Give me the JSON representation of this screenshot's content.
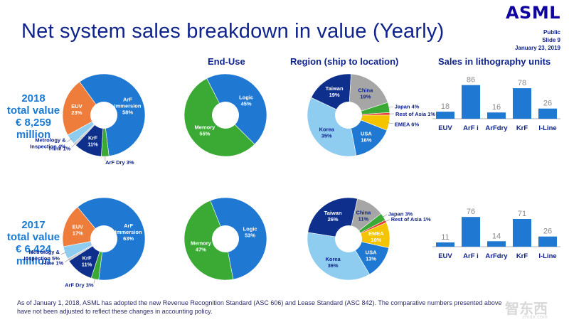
{
  "header": {
    "title": "Net system sales breakdown in value (Yearly)",
    "logo": "ASML",
    "classification": "Public",
    "slide": "Slide 9",
    "date": "January 23, 2019"
  },
  "section_headers": {
    "end_use": "End-Use",
    "region": "Region (ship to location)",
    "units": "Sales in lithography units"
  },
  "years": [
    {
      "line1": "2018",
      "line2": "total value",
      "line3": "€ 8,259",
      "line4": "million"
    },
    {
      "line1": "2017",
      "line2": "total value",
      "line3": "€ 6,424",
      "line4": "million"
    }
  ],
  "footnote": "As of January 1, 2018, ASML has adopted the new Revenue Recognition Standard (ASC 606) and Lease Standard (ASC 842). The comparative numbers presented above have not been adjusted to reflect these changes in accounting policy.",
  "watermark": {
    "text": "智东西",
    "sub": "zhidx.com"
  },
  "chart_data": [
    {
      "type": "pie",
      "id": "tech-2018",
      "title": "Technology 2018",
      "slices": [
        {
          "name": "ArF Immersion",
          "label": "ArF\nImmersion\n58%",
          "value": 58,
          "color": "#1f78d1"
        },
        {
          "name": "ArF Dry",
          "label": "ArF Dry 3%",
          "value": 3,
          "color": "#3aaa35"
        },
        {
          "name": "KrF",
          "label": "KrF\n11%",
          "value": 11,
          "color": "#0f2f8c"
        },
        {
          "name": "I-line",
          "label": "I-line 1%",
          "value": 1,
          "color": "#c9c9c9"
        },
        {
          "name": "Metrology & Inspection",
          "label": "Metrology &\nInspection 4%",
          "value": 4,
          "color": "#8fcdf0"
        },
        {
          "name": "EUV",
          "label": "EUV\n23%",
          "value": 23,
          "color": "#ee7d3b"
        }
      ]
    },
    {
      "type": "pie",
      "id": "enduse-2018",
      "title": "End-Use 2018",
      "slices": [
        {
          "name": "Logic",
          "label": "Logic\n45%",
          "value": 45,
          "color": "#1f78d1"
        },
        {
          "name": "Memory",
          "label": "Memory\n55%",
          "value": 55,
          "color": "#3aaa35"
        }
      ]
    },
    {
      "type": "pie",
      "id": "region-2018",
      "title": "Region 2018",
      "slices": [
        {
          "name": "Taiwan",
          "label": "Taiwan\n19%",
          "value": 19,
          "color": "#0f2f8c"
        },
        {
          "name": "China",
          "label": "China\n19%",
          "value": 19,
          "color": "#a6a6a6"
        },
        {
          "name": "Japan",
          "label": "Japan 4%",
          "value": 4,
          "color": "#3aaa35"
        },
        {
          "name": "Rest of Asia",
          "label": "Rest of Asia 1%",
          "value": 1,
          "color": "#e8392d"
        },
        {
          "name": "EMEA",
          "label": "EMEA 6%",
          "value": 6,
          "color": "#f5c400"
        },
        {
          "name": "USA",
          "label": "USA\n16%",
          "value": 16,
          "color": "#1f78d1"
        },
        {
          "name": "Korea",
          "label": "Korea\n35%",
          "value": 35,
          "color": "#8fcdf0"
        }
      ]
    },
    {
      "type": "bar",
      "id": "units-2018",
      "title": "Sales in lithography units 2018",
      "categories": [
        "EUV",
        "ArF i",
        "ArFdry",
        "KrF",
        "I-Line"
      ],
      "values": [
        18,
        86,
        16,
        78,
        26
      ],
      "ylim": [
        0,
        100
      ],
      "color": "#1f78d1"
    },
    {
      "type": "pie",
      "id": "tech-2017",
      "title": "Technology 2017",
      "slices": [
        {
          "name": "ArF Immersion",
          "label": "ArF\nImmersion\n63%",
          "value": 63,
          "color": "#1f78d1"
        },
        {
          "name": "ArF Dry",
          "label": "ArF Dry 3%",
          "value": 3,
          "color": "#3aaa35"
        },
        {
          "name": "KrF",
          "label": "KrF\n11%",
          "value": 11,
          "color": "#0f2f8c"
        },
        {
          "name": "I-line",
          "label": "I-line 1%",
          "value": 1,
          "color": "#c9c9c9"
        },
        {
          "name": "Metrology & Inspection",
          "label": "Metrology &\nInspection 5%",
          "value": 5,
          "color": "#8fcdf0"
        },
        {
          "name": "EUV",
          "label": "EUV\n17%",
          "value": 17,
          "color": "#ee7d3b"
        }
      ]
    },
    {
      "type": "pie",
      "id": "enduse-2017",
      "title": "End-Use 2017",
      "slices": [
        {
          "name": "Logic",
          "label": "Logic\n53%",
          "value": 53,
          "color": "#1f78d1"
        },
        {
          "name": "Memory",
          "label": "Memory\n47%",
          "value": 47,
          "color": "#3aaa35"
        }
      ]
    },
    {
      "type": "pie",
      "id": "region-2017",
      "title": "Region 2017",
      "slices": [
        {
          "name": "Taiwan",
          "label": "Taiwan\n26%",
          "value": 26,
          "color": "#0f2f8c"
        },
        {
          "name": "China",
          "label": "China\n11%",
          "value": 11,
          "color": "#a6a6a6"
        },
        {
          "name": "Japan",
          "label": "Japan 3%",
          "value": 3,
          "color": "#3aaa35"
        },
        {
          "name": "Rest of Asia",
          "label": "Rest of Asia 1%",
          "value": 1,
          "color": "#e8392d"
        },
        {
          "name": "EMEA",
          "label": "EMEA\n10%",
          "value": 10,
          "color": "#f5c400"
        },
        {
          "name": "USA",
          "label": "USA\n13%",
          "value": 13,
          "color": "#1f78d1"
        },
        {
          "name": "Korea",
          "label": "Korea\n36%",
          "value": 36,
          "color": "#8fcdf0"
        }
      ]
    },
    {
      "type": "bar",
      "id": "units-2017",
      "title": "Sales in lithography units 2017",
      "categories": [
        "EUV",
        "ArF i",
        "ArFdry",
        "KrF",
        "I-Line"
      ],
      "values": [
        11,
        76,
        14,
        71,
        26
      ],
      "ylim": [
        0,
        100
      ],
      "color": "#1f78d1"
    }
  ]
}
